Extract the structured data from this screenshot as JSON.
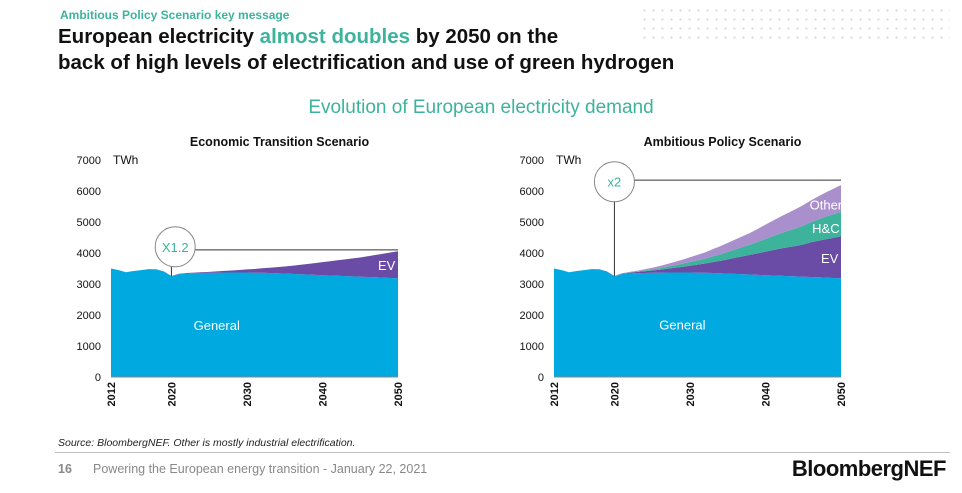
{
  "kicker": "Ambitious Policy Scenario key message",
  "headline": {
    "part1": "European electricity ",
    "highlight": "almost doubles",
    "part2": " by 2050 on the",
    "line2": "back of high levels of electrification and use of green hydrogen"
  },
  "subtitle": "Evolution of European electricity demand",
  "source": "Source: BloombergNEF. Other is mostly industrial electrification.",
  "footer": {
    "page_number": "16",
    "text": "Powering the European energy transition - January 22, 2021",
    "brand": "BloombergNEF"
  },
  "colors": {
    "general": "#00a9e0",
    "ev": "#6a4ba5",
    "hc": "#3db39c",
    "other": "#a98fcb",
    "accent": "#3db39c"
  },
  "chart_data": [
    {
      "type": "area",
      "title": "Economic Transition Scenario",
      "ylabel": "TWh",
      "ylim": [
        0,
        7000
      ],
      "yticks": [
        "0",
        "1000",
        "2000",
        "3000",
        "4000",
        "5000",
        "6000",
        "7000"
      ],
      "xlim": [
        2012,
        2050
      ],
      "xticks": [
        "2012",
        "2020",
        "2030",
        "2040",
        "2050"
      ],
      "x": [
        2012,
        2013,
        2014,
        2015,
        2016,
        2017,
        2018,
        2019,
        2020,
        2021,
        2022,
        2023,
        2024,
        2025,
        2026,
        2027,
        2028,
        2029,
        2030,
        2031,
        2032,
        2033,
        2034,
        2035,
        2036,
        2037,
        2038,
        2039,
        2040,
        2041,
        2042,
        2043,
        2044,
        2045,
        2046,
        2047,
        2048,
        2049,
        2050
      ],
      "series": [
        {
          "name": "General",
          "color_key": "general",
          "values": [
            3500,
            3450,
            3380,
            3420,
            3450,
            3480,
            3470,
            3400,
            3250,
            3320,
            3340,
            3350,
            3355,
            3360,
            3365,
            3370,
            3372,
            3372,
            3370,
            3365,
            3360,
            3355,
            3345,
            3335,
            3325,
            3315,
            3305,
            3295,
            3285,
            3275,
            3265,
            3255,
            3245,
            3235,
            3225,
            3215,
            3205,
            3195,
            3185
          ]
        },
        {
          "name": "EV",
          "color_key": "ev",
          "values": [
            0,
            0,
            0,
            0,
            0,
            2,
            3,
            5,
            8,
            10,
            14,
            18,
            24,
            30,
            40,
            52,
            65,
            80,
            100,
            120,
            145,
            170,
            200,
            230,
            265,
            300,
            340,
            380,
            420,
            460,
            500,
            540,
            580,
            620,
            670,
            720,
            770,
            820,
            870
          ]
        }
      ],
      "labels": [
        {
          "series": "General",
          "text": "General"
        },
        {
          "series": "EV",
          "text": "EV"
        }
      ],
      "multiplier": "X1.2"
    },
    {
      "type": "area",
      "title": "Ambitious Policy Scenario",
      "ylabel": "TWh",
      "ylim": [
        0,
        7000
      ],
      "yticks": [
        "0",
        "1000",
        "2000",
        "3000",
        "4000",
        "5000",
        "6000",
        "7000"
      ],
      "xlim": [
        2012,
        2050
      ],
      "xticks": [
        "2012",
        "2020",
        "2030",
        "2040",
        "2050"
      ],
      "x": [
        2012,
        2013,
        2014,
        2015,
        2016,
        2017,
        2018,
        2019,
        2020,
        2021,
        2022,
        2023,
        2024,
        2025,
        2026,
        2027,
        2028,
        2029,
        2030,
        2031,
        2032,
        2033,
        2034,
        2035,
        2036,
        2037,
        2038,
        2039,
        2040,
        2041,
        2042,
        2043,
        2044,
        2045,
        2046,
        2047,
        2048,
        2049,
        2050
      ],
      "series": [
        {
          "name": "General",
          "color_key": "general",
          "values": [
            3500,
            3450,
            3380,
            3420,
            3450,
            3480,
            3470,
            3400,
            3250,
            3320,
            3340,
            3350,
            3355,
            3360,
            3365,
            3370,
            3372,
            3372,
            3370,
            3365,
            3360,
            3355,
            3345,
            3335,
            3325,
            3315,
            3305,
            3295,
            3285,
            3275,
            3265,
            3255,
            3245,
            3235,
            3225,
            3215,
            3205,
            3195,
            3185
          ]
        },
        {
          "name": "EV",
          "color_key": "ev",
          "values": [
            0,
            0,
            0,
            0,
            0,
            2,
            3,
            5,
            8,
            15,
            25,
            40,
            55,
            75,
            95,
            120,
            150,
            180,
            220,
            260,
            300,
            350,
            400,
            460,
            520,
            580,
            640,
            700,
            760,
            820,
            880,
            930,
            980,
            1040,
            1120,
            1180,
            1240,
            1300,
            1350
          ]
        },
        {
          "name": "H&C",
          "color_key": "hc",
          "values": [
            0,
            0,
            0,
            0,
            0,
            0,
            0,
            0,
            0,
            5,
            10,
            15,
            25,
            35,
            50,
            65,
            80,
            100,
            120,
            140,
            160,
            185,
            210,
            240,
            270,
            300,
            330,
            370,
            410,
            450,
            490,
            530,
            570,
            610,
            650,
            690,
            730,
            760,
            790
          ]
        },
        {
          "name": "Other",
          "color_key": "other",
          "values": [
            0,
            0,
            0,
            0,
            0,
            0,
            0,
            0,
            0,
            5,
            15,
            25,
            40,
            55,
            70,
            90,
            110,
            130,
            150,
            175,
            200,
            230,
            260,
            290,
            320,
            350,
            380,
            420,
            460,
            500,
            540,
            580,
            620,
            660,
            700,
            740,
            780,
            820,
            870
          ]
        }
      ],
      "labels": [
        {
          "series": "General",
          "text": "General"
        },
        {
          "series": "EV",
          "text": "EV"
        },
        {
          "series": "H&C",
          "text": "H&C"
        },
        {
          "series": "Other",
          "text": "Other"
        }
      ],
      "multiplier": "x2"
    }
  ]
}
